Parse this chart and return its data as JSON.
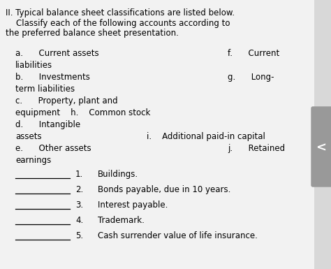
{
  "bg_color": "#d8d8d8",
  "content_bg": "#f0f0f0",
  "sidebar_color": "#999999",
  "title_lines": [
    "II. Typical balance sheet classifications are listed below.",
    "    Classify each of the following accounts according to",
    "the preferred balance sheet presentation."
  ],
  "clf_left": [
    "a.      Current assets",
    "liabilities",
    "b.      Investments",
    "term liabilities",
    "c.      Property, plant and",
    "equipment    h.    Common stock",
    "d.      Intangible",
    "assets",
    "e.      Other assets",
    "earnings"
  ],
  "clf_right": [
    [
      "f.      Current",
      0.6
    ],
    [
      "",
      0.0
    ],
    [
      "g.      Long-",
      0.6
    ],
    [
      "",
      0.0
    ],
    [
      "",
      0.0
    ],
    [
      "",
      0.0
    ],
    [
      "",
      0.0
    ],
    [
      "i.    Additional paid-in capital",
      0.38
    ],
    [
      "j.      Retained",
      0.6
    ],
    [
      "",
      0.0
    ]
  ],
  "items": [
    "Buildings.",
    "Bonds payable, due in 10 years.",
    "Interest payable.",
    "Trademark.",
    "Cash surrender value of life insurance."
  ],
  "font_size": 8.5,
  "title_font_size": 8.5
}
